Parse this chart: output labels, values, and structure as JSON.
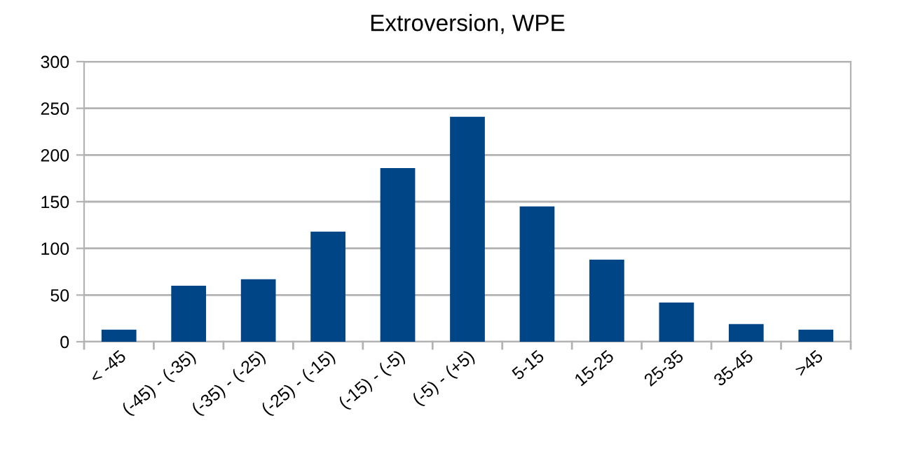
{
  "chart_data": {
    "type": "bar",
    "title": "Extroversion, WPE",
    "categories": [
      "< -45",
      "(-45) - (-35)",
      "(-35) - (-25)",
      "(-25) - (-15)",
      "(-15) - (-5)",
      "(-5) - (+5)",
      "5-15",
      "15-25",
      "25-35",
      "35-45",
      ">45"
    ],
    "values": [
      13,
      60,
      67,
      118,
      186,
      241,
      145,
      88,
      42,
      19,
      13
    ],
    "color": "#004586",
    "ylim": [
      0,
      300
    ],
    "yticks": [
      0,
      50,
      100,
      150,
      200,
      250,
      300
    ],
    "grid": "y",
    "legend": false
  }
}
